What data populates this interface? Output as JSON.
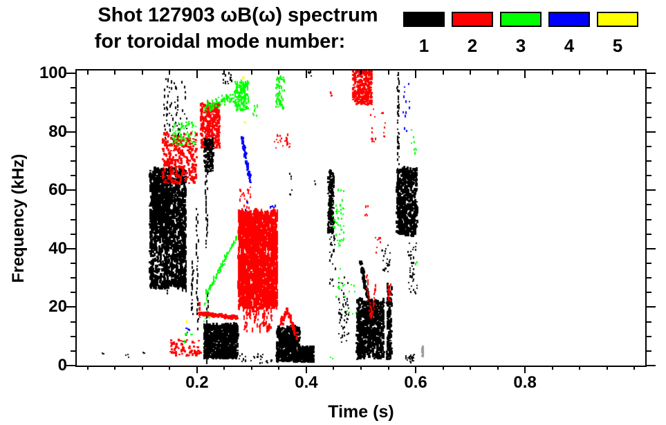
{
  "header": {
    "title_line1": "Shot 127903 ωB(ω) spectrum",
    "title_line2": "for toroidal mode number:"
  },
  "legend": {
    "entries": [
      {
        "label": "1",
        "color": "#000000"
      },
      {
        "label": "2",
        "color": "#ff0000"
      },
      {
        "label": "3",
        "color": "#00ff00"
      },
      {
        "label": "4",
        "color": "#0000ff"
      },
      {
        "label": "5",
        "color": "#ffff00"
      }
    ]
  },
  "chart_data": {
    "type": "scatter",
    "title": "Shot 127903 ωB(ω) spectrum for toroidal mode number: 1-5",
    "xlabel": "Time (s)",
    "ylabel": "Frequency (kHz)",
    "xlim": [
      -0.02,
      1.02
    ],
    "ylim": [
      0,
      101
    ],
    "grid": false,
    "legend_position": "top-right",
    "xticks_major": [
      0.2,
      0.4,
      0.6,
      0.8
    ],
    "xtick_labels": [
      "0.2",
      "0.4",
      "0.6",
      "0.8"
    ],
    "xtick_minor_step": 0.05,
    "yticks_major": [
      0,
      20,
      40,
      60,
      80,
      100
    ],
    "ytick_labels": [
      "0",
      "20",
      "40",
      "60",
      "80",
      "100"
    ],
    "ytick_minor_step": 5,
    "modes": {
      "1": "#000000",
      "2": "#ff0000",
      "3": "#00ff00",
      "4": "#0000ff",
      "5": "#ffff00",
      "gray": "#999999"
    },
    "clusters": [
      {
        "m": "1",
        "s": "box",
        "t": [
          0.112,
          0.178
        ],
        "f": [
          26,
          67
        ],
        "n": 1400,
        "d": [
          3,
          5
        ]
      },
      {
        "m": "1",
        "s": "box",
        "t": [
          0.118,
          0.148
        ],
        "f": [
          45,
          66
        ],
        "n": 320,
        "d": [
          3,
          5
        ]
      },
      {
        "m": "1",
        "s": "line",
        "t": [
          0.144,
          0.144
        ],
        "f": [
          24,
          40
        ],
        "n": 20,
        "d": [
          2,
          5
        ],
        "j": 0
      },
      {
        "m": "1",
        "s": "line",
        "t": [
          0.172,
          0.172
        ],
        "f": [
          25,
          44
        ],
        "n": 25,
        "d": [
          2,
          6
        ],
        "j": 0
      },
      {
        "m": "1",
        "s": "line",
        "t": [
          0.177,
          0.177
        ],
        "f": [
          25,
          50
        ],
        "n": 22,
        "d": [
          2,
          6
        ],
        "j": 0
      },
      {
        "m": "1",
        "s": "line",
        "t": [
          0.19,
          0.19
        ],
        "f": [
          17,
          35
        ],
        "n": 18,
        "d": [
          2,
          5
        ],
        "j": 0
      },
      {
        "m": "1",
        "s": "box",
        "t": [
          0.138,
          0.18
        ],
        "f": [
          77,
          98
        ],
        "n": 70,
        "d": [
          2,
          4
        ]
      },
      {
        "m": "1",
        "s": "box",
        "t": [
          0.245,
          0.262
        ],
        "f": [
          96,
          100.5
        ],
        "n": 14,
        "d": [
          2,
          4
        ]
      },
      {
        "m": "1",
        "s": "box",
        "t": [
          0.403,
          0.408
        ],
        "f": [
          98,
          100.3
        ],
        "n": 4,
        "d": [
          2,
          3
        ]
      },
      {
        "m": "2",
        "s": "box",
        "t": [
          0.135,
          0.198
        ],
        "f": [
          62,
          79
        ],
        "n": 290,
        "d": [
          3,
          4
        ]
      },
      {
        "m": "3",
        "s": "box",
        "t": [
          0.154,
          0.196
        ],
        "f": [
          75,
          83
        ],
        "n": 90,
        "d": [
          2,
          3
        ]
      },
      {
        "m": "2",
        "s": "box",
        "t": [
          0.205,
          0.24
        ],
        "f": [
          74,
          89.5
        ],
        "n": 300,
        "d": [
          3,
          4
        ]
      },
      {
        "m": "1",
        "s": "box",
        "t": [
          0.211,
          0.228
        ],
        "f": [
          66,
          77
        ],
        "n": 130,
        "d": [
          3,
          4
        ]
      },
      {
        "m": "1",
        "s": "line",
        "t": [
          0.216,
          0.216
        ],
        "f": [
          40,
          66
        ],
        "n": 22,
        "d": [
          2,
          5
        ],
        "j": 0
      },
      {
        "m": "1",
        "s": "line",
        "t": [
          0.199,
          0.199
        ],
        "f": [
          12,
          54
        ],
        "n": 28,
        "d": [
          2,
          5
        ],
        "j": 0
      },
      {
        "m": "1",
        "s": "line",
        "t": [
          0.218,
          0.218
        ],
        "f": [
          0,
          24
        ],
        "n": 20,
        "d": [
          2,
          5
        ],
        "j": 0
      },
      {
        "m": "3",
        "s": "line",
        "t": [
          0.213,
          0.268
        ],
        "f": [
          88,
          92
        ],
        "n": 95,
        "d": [
          2,
          3
        ],
        "j": 2.2
      },
      {
        "m": "3",
        "s": "box",
        "t": [
          0.268,
          0.293
        ],
        "f": [
          87,
          97
        ],
        "n": 170,
        "d": [
          2,
          4
        ]
      },
      {
        "m": "3",
        "s": "box",
        "t": [
          0.3,
          0.31
        ],
        "f": [
          85,
          89
        ],
        "n": 8,
        "d": [
          2,
          3
        ]
      },
      {
        "m": "3",
        "s": "box",
        "t": [
          0.343,
          0.359
        ],
        "f": [
          87,
          98.5
        ],
        "n": 60,
        "d": [
          2,
          4
        ]
      },
      {
        "m": "4",
        "s": "line",
        "t": [
          0.28,
          0.296
        ],
        "f": [
          78,
          63
        ],
        "n": 50,
        "d": [
          3,
          4
        ],
        "j": 1.2
      },
      {
        "m": "4",
        "s": "box",
        "t": [
          0.287,
          0.292
        ],
        "f": [
          52,
          56
        ],
        "n": 6,
        "d": [
          2,
          3
        ]
      },
      {
        "m": "4",
        "s": "box",
        "t": [
          0.331,
          0.344
        ],
        "f": [
          50,
          55
        ],
        "n": 10,
        "d": [
          2,
          3
        ]
      },
      {
        "m": "4",
        "s": "box",
        "t": [
          0.575,
          0.588
        ],
        "f": [
          80,
          96
        ],
        "n": 12,
        "d": [
          2,
          3
        ]
      },
      {
        "m": "4",
        "s": "box",
        "t": [
          0.178,
          0.186
        ],
        "f": [
          8,
          13
        ],
        "n": 8,
        "d": [
          2,
          3
        ]
      },
      {
        "m": "3",
        "s": "line",
        "t": [
          0.214,
          0.283
        ],
        "f": [
          23.5,
          47.5
        ],
        "n": 78,
        "d": [
          2,
          4
        ],
        "j": 1.2
      },
      {
        "m": "3",
        "s": "box",
        "t": [
          0.211,
          0.222
        ],
        "f": [
          14,
          23
        ],
        "n": 12,
        "d": [
          2,
          3
        ]
      },
      {
        "m": "2",
        "s": "box",
        "t": [
          0.274,
          0.346
        ],
        "f": [
          19,
          52
        ],
        "n": 2300,
        "d": [
          2,
          7
        ]
      },
      {
        "m": "2",
        "s": "box",
        "t": [
          0.276,
          0.3
        ],
        "f": [
          45,
          61
        ],
        "n": 40,
        "d": [
          2,
          4
        ]
      },
      {
        "m": "2",
        "s": "box",
        "t": [
          0.283,
          0.336
        ],
        "f": [
          11,
          20
        ],
        "n": 90,
        "d": [
          2,
          6
        ]
      },
      {
        "m": "2",
        "s": "line",
        "t": [
          0.202,
          0.272
        ],
        "f": [
          17.5,
          16
        ],
        "n": 230,
        "d": [
          3,
          3
        ],
        "j": 0.7
      },
      {
        "m": "2",
        "s": "line",
        "t": [
          0.203,
          0.203
        ],
        "f": [
          16,
          21.5
        ],
        "n": 10,
        "d": [
          2,
          4
        ],
        "j": 0
      },
      {
        "m": "1",
        "s": "box",
        "t": [
          0.211,
          0.273
        ],
        "f": [
          2,
          13.5
        ],
        "n": 700,
        "d": [
          3,
          5
        ]
      },
      {
        "m": "1",
        "s": "box",
        "t": [
          0.27,
          0.345
        ],
        "f": [
          0.5,
          4
        ],
        "n": 25,
        "d": [
          2,
          3
        ]
      },
      {
        "m": "1",
        "s": "box",
        "t": [
          0.344,
          0.386
        ],
        "f": [
          1,
          12.5
        ],
        "n": 480,
        "d": [
          3,
          5
        ]
      },
      {
        "m": "1",
        "s": "box",
        "t": [
          0.386,
          0.412
        ],
        "f": [
          0.8,
          6
        ],
        "n": 160,
        "d": [
          3,
          4
        ]
      },
      {
        "m": "2",
        "s": "line",
        "t": [
          0.352,
          0.363
        ],
        "f": [
          14,
          18.5
        ],
        "n": 35,
        "d": [
          3,
          4
        ],
        "j": 1
      },
      {
        "m": "2",
        "s": "line",
        "t": [
          0.363,
          0.38
        ],
        "f": [
          18.5,
          9.5
        ],
        "n": 45,
        "d": [
          3,
          4
        ],
        "j": 1
      },
      {
        "m": "2",
        "s": "box",
        "t": [
          0.34,
          0.37
        ],
        "f": [
          74,
          79
        ],
        "n": 26,
        "d": [
          2,
          3
        ]
      },
      {
        "m": "1",
        "s": "box",
        "t": [
          0.438,
          0.448
        ],
        "f": [
          45,
          66
        ],
        "n": 170,
        "d": [
          3,
          4
        ]
      },
      {
        "m": "1",
        "s": "box",
        "t": [
          0.44,
          0.452
        ],
        "f": [
          26,
          44
        ],
        "n": 25,
        "d": [
          2,
          3
        ]
      },
      {
        "m": "3",
        "s": "box",
        "t": [
          0.447,
          0.468
        ],
        "f": [
          40,
          60
        ],
        "n": 45,
        "d": [
          2,
          3
        ]
      },
      {
        "m": "3",
        "s": "box",
        "t": [
          0.452,
          0.47
        ],
        "f": [
          23,
          33
        ],
        "n": 10,
        "d": [
          2,
          3
        ]
      },
      {
        "m": "3",
        "s": "box",
        "t": [
          0.47,
          0.492
        ],
        "f": [
          17,
          28
        ],
        "n": 10,
        "d": [
          2,
          3
        ]
      },
      {
        "m": "3",
        "s": "box",
        "t": [
          0.443,
          0.447
        ],
        "f": [
          1.5,
          3
        ],
        "n": 2,
        "d": [
          2,
          3
        ]
      },
      {
        "m": "2",
        "s": "box",
        "t": [
          0.483,
          0.518
        ],
        "f": [
          89,
          100.8
        ],
        "n": 260,
        "d": [
          3,
          4
        ]
      },
      {
        "m": "2",
        "s": "box",
        "t": [
          0.443,
          0.446
        ],
        "f": [
          91.5,
          94.5
        ],
        "n": 5,
        "d": [
          2,
          3
        ]
      },
      {
        "m": "2",
        "s": "box",
        "t": [
          0.517,
          0.527
        ],
        "f": [
          76,
          88
        ],
        "n": 12,
        "d": [
          2,
          3
        ]
      },
      {
        "m": "2",
        "s": "box",
        "t": [
          0.536,
          0.543
        ],
        "f": [
          78,
          87
        ],
        "n": 8,
        "d": [
          2,
          3
        ]
      },
      {
        "m": "2",
        "s": "box",
        "t": [
          0.506,
          0.512
        ],
        "f": [
          51,
          55
        ],
        "n": 5,
        "d": [
          2,
          3
        ]
      },
      {
        "m": "2",
        "s": "box",
        "t": [
          0.525,
          0.537
        ],
        "f": [
          38,
          45
        ],
        "n": 8,
        "d": [
          2,
          3
        ]
      },
      {
        "m": "1",
        "s": "line",
        "t": [
          0.497,
          0.512
        ],
        "f": [
          35,
          22
        ],
        "n": 70,
        "d": [
          3,
          4
        ],
        "j": 1.5
      },
      {
        "m": "1",
        "s": "box",
        "t": [
          0.49,
          0.54
        ],
        "f": [
          2,
          22
        ],
        "n": 700,
        "d": [
          3,
          5
        ]
      },
      {
        "m": "1",
        "s": "box",
        "t": [
          0.458,
          0.478
        ],
        "f": [
          7,
          30
        ],
        "n": 50,
        "d": [
          2,
          3
        ]
      },
      {
        "m": "1",
        "s": "box",
        "t": [
          0.546,
          0.554
        ],
        "f": [
          1.5,
          27
        ],
        "n": 130,
        "d": [
          3,
          5
        ]
      },
      {
        "m": "2",
        "s": "box",
        "t": [
          0.547,
          0.553
        ],
        "f": [
          22,
          27.5
        ],
        "n": 22,
        "d": [
          2,
          4
        ]
      },
      {
        "m": "1",
        "s": "box",
        "t": [
          0.538,
          0.552
        ],
        "f": [
          31,
          41
        ],
        "n": 22,
        "d": [
          2,
          3
        ]
      },
      {
        "m": "2",
        "s": "line",
        "t": [
          0.509,
          0.514
        ],
        "f": [
          31,
          20
        ],
        "n": 16,
        "d": [
          2,
          4
        ],
        "j": 0.6
      },
      {
        "m": "2",
        "s": "line",
        "t": [
          0.514,
          0.519
        ],
        "f": [
          20,
          15.8
        ],
        "n": 12,
        "d": [
          2,
          4
        ],
        "j": 0.6
      },
      {
        "m": "2",
        "s": "line",
        "t": [
          0.519,
          0.527
        ],
        "f": [
          15.8,
          28
        ],
        "n": 16,
        "d": [
          2,
          4
        ],
        "j": 0.6
      },
      {
        "m": "1",
        "s": "box",
        "t": [
          0.565,
          0.569
        ],
        "f": [
          63,
          100.5
        ],
        "n": 48,
        "d": [
          2,
          4
        ]
      },
      {
        "m": "1",
        "s": "box",
        "t": [
          0.563,
          0.601
        ],
        "f": [
          44,
          67
        ],
        "n": 520,
        "d": [
          3,
          5
        ]
      },
      {
        "m": "1",
        "s": "box",
        "t": [
          0.585,
          0.601
        ],
        "f": [
          24,
          43
        ],
        "n": 40,
        "d": [
          2,
          3
        ]
      },
      {
        "m": "1",
        "s": "box",
        "t": [
          0.58,
          0.597
        ],
        "f": [
          0.7,
          3.5
        ],
        "n": 22,
        "d": [
          2,
          3
        ]
      },
      {
        "m": "3",
        "s": "box",
        "t": [
          0.588,
          0.601
        ],
        "f": [
          72,
          81
        ],
        "n": 8,
        "d": [
          2,
          3
        ]
      },
      {
        "m": "3",
        "s": "box",
        "t": [
          0.598,
          0.602
        ],
        "f": [
          34,
          36
        ],
        "n": 3,
        "d": [
          2,
          3
        ]
      },
      {
        "m": "2",
        "s": "box",
        "t": [
          0.148,
          0.205
        ],
        "f": [
          3,
          8.5
        ],
        "n": 80,
        "d": [
          3,
          3
        ]
      },
      {
        "m": "3",
        "s": "box",
        "t": [
          0.174,
          0.19
        ],
        "f": [
          7.5,
          10.5
        ],
        "n": 6,
        "d": [
          2,
          3
        ]
      },
      {
        "m": "5",
        "s": "box",
        "t": [
          0.282,
          0.285
        ],
        "f": [
          97,
          98.5
        ],
        "n": 3,
        "d": [
          2,
          3
        ]
      },
      {
        "m": "5",
        "s": "box",
        "t": [
          0.285,
          0.288
        ],
        "f": [
          82,
          83.5
        ],
        "n": 3,
        "d": [
          2,
          3
        ]
      },
      {
        "m": "5",
        "s": "box",
        "t": [
          0.178,
          0.181
        ],
        "f": [
          14,
          15.5
        ],
        "n": 2,
        "d": [
          2,
          3
        ]
      },
      {
        "m": "gray",
        "s": "box",
        "t": [
          0.609,
          0.612
        ],
        "f": [
          2.8,
          6.6
        ],
        "n": 14,
        "d": [
          3,
          3
        ]
      },
      {
        "m": "1",
        "s": "box",
        "t": [
          0.024,
          0.028
        ],
        "f": [
          3.5,
          5
        ],
        "n": 3,
        "d": [
          2,
          2
        ]
      },
      {
        "m": "1",
        "s": "box",
        "t": [
          0.068,
          0.075
        ],
        "f": [
          2.5,
          4
        ],
        "n": 3,
        "d": [
          2,
          2
        ]
      },
      {
        "m": "1",
        "s": "box",
        "t": [
          0.099,
          0.103
        ],
        "f": [
          3,
          4.5
        ],
        "n": 3,
        "d": [
          2,
          2
        ]
      },
      {
        "m": "1",
        "s": "box",
        "t": [
          0.368,
          0.372
        ],
        "f": [
          58,
          66
        ],
        "n": 7,
        "d": [
          2,
          3
        ]
      },
      {
        "m": "1",
        "s": "box",
        "t": [
          0.414,
          0.418
        ],
        "f": [
          61,
          63
        ],
        "n": 3,
        "d": [
          2,
          3
        ]
      }
    ]
  }
}
